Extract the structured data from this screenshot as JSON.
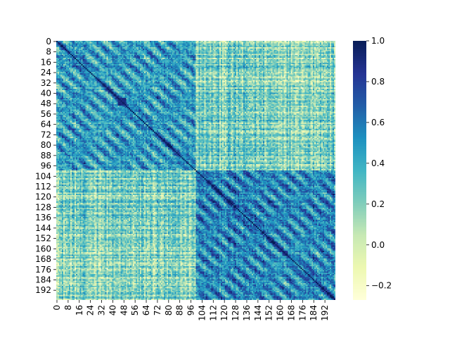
{
  "chart_data": {
    "type": "heatmap",
    "colormap": "YlGnBu",
    "n_rows": 200,
    "n_cols": 200,
    "diagonal_value": 1.0,
    "xlabel": "",
    "ylabel": "",
    "x_tick_labels": [
      "0",
      "8",
      "16",
      "24",
      "32",
      "40",
      "48",
      "56",
      "64",
      "72",
      "80",
      "88",
      "96",
      "104",
      "112",
      "120",
      "128",
      "136",
      "144",
      "152",
      "160",
      "168",
      "176",
      "184",
      "192"
    ],
    "y_tick_labels": [
      "0",
      "8",
      "16",
      "24",
      "32",
      "40",
      "48",
      "56",
      "64",
      "72",
      "80",
      "88",
      "96",
      "104",
      "112",
      "120",
      "128",
      "136",
      "144",
      "152",
      "160",
      "168",
      "176",
      "184",
      "192"
    ],
    "colorbar": {
      "vmin": -0.27,
      "vmax": 1.0,
      "tick_values": [
        -0.2,
        0.0,
        0.2,
        0.4,
        0.6,
        0.8,
        1.0
      ],
      "tick_labels": [
        "−0.2",
        "0.0",
        "0.2",
        "0.4",
        "0.6",
        "0.8",
        "1.0"
      ]
    },
    "blocks": [
      {
        "range": [
          0,
          100
        ],
        "within_block_mean": 0.45
      },
      {
        "range": [
          100,
          200
        ],
        "within_block_mean": 0.55
      }
    ],
    "between_block_mean": 0.2,
    "strong_subblocks": [
      {
        "range": [
          44,
          50
        ],
        "mean": 0.9
      }
    ]
  }
}
